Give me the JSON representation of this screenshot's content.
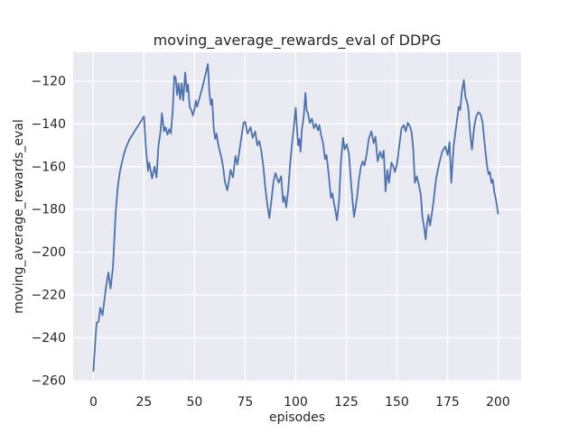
{
  "figure": {
    "title": "moving_average_rewards_eval of DDPG"
  },
  "chart_data": {
    "type": "line",
    "title": "moving_average_rewards_eval of DDPG",
    "xlabel": "episodes",
    "ylabel": "moving_average_rewards_eval",
    "x_ticks": [
      0,
      25,
      50,
      75,
      100,
      125,
      150,
      175,
      200
    ],
    "y_ticks": [
      -260,
      -240,
      -220,
      -200,
      -180,
      -160,
      -140,
      -120
    ],
    "xlim": [
      -10,
      211.4
    ],
    "ylim": [
      -260.5,
      -106.5
    ],
    "grid": true,
    "legend": false,
    "colors": {
      "line": "#4c72b0",
      "axes_bg": "#eaeaf2",
      "grid": "#ffffff",
      "figure_bg": "#ffffff",
      "text": "#262626"
    },
    "series": [
      {
        "name": "moving_average_rewards_eval",
        "x": [
          0,
          1,
          1.6,
          2.6,
          3.4,
          4.5,
          5.5,
          6.4,
          7.4,
          8.5,
          9.7,
          11,
          12,
          13,
          14,
          15,
          16,
          17,
          18,
          19,
          20,
          21,
          22,
          23,
          24,
          25,
          26,
          27,
          27.6,
          29,
          30.2,
          31.2,
          32.2,
          33.1,
          33.9,
          34.9,
          35.7,
          36.6,
          37.5,
          38.3,
          39.2,
          40,
          40.7,
          41.4,
          42.1,
          42.9,
          43.6,
          44.4,
          45.4,
          46.2,
          46.8,
          47.6,
          48.4,
          49.2,
          50,
          50.6,
          51.3,
          52,
          53,
          54,
          55,
          56,
          56.6,
          57.3,
          58,
          58.7,
          59.5,
          60.2,
          60.9,
          61.6,
          62.4,
          63.2,
          64.1,
          65,
          66.2,
          67,
          67.8,
          69,
          70.2,
          71.2,
          72.6,
          74.2,
          75,
          76.2,
          77.7,
          78.7,
          80,
          81,
          82,
          83,
          84,
          85,
          86,
          87,
          88,
          89,
          90,
          91,
          91.6,
          92.8,
          93.8,
          94.5,
          95.3,
          96.3,
          97.3,
          98.2,
          99,
          100,
          100.6,
          101.2,
          101.8,
          102.4,
          103,
          103.5,
          104,
          104.8,
          105.4,
          106,
          107,
          108,
          109,
          110,
          111,
          111.7,
          112.5,
          113.5,
          114.5,
          115.2,
          116.2,
          117.4,
          118.1,
          119,
          119.7,
          120.4,
          121.4,
          122.4,
          123.4,
          124.2,
          125.2,
          126.3,
          127.4,
          128.2,
          128.8,
          129.6,
          130.3,
          131.2,
          132.2,
          133.1,
          134,
          135.1,
          136.1,
          137.4,
          138.5,
          139.4,
          140.5,
          141.7,
          142.7,
          143.5,
          144.4,
          145.3,
          146.1,
          147.3,
          148.3,
          149.1,
          150.1,
          151.4,
          152.3,
          153.4,
          154.4,
          155.4,
          156.4,
          157.3,
          158.1,
          158.9,
          159.8,
          160.8,
          161.8,
          162.6,
          163.4,
          164.2,
          164.9,
          165.6,
          166.4,
          167.3,
          168,
          169.4,
          170.9,
          172.4,
          173.9,
          175.1,
          176,
          176.9,
          178.1,
          179,
          179.9,
          180.6,
          181.3,
          182.1,
          183.1,
          183.9,
          184.6,
          185.3,
          186.2,
          187.1,
          188.2,
          189.2,
          190.3,
          191.4,
          192.4,
          193.4,
          194.5,
          195.3,
          196,
          196.7,
          197.4,
          198.2,
          199.1,
          200
        ],
        "y": [
          -255.5,
          -241,
          -233,
          -232.5,
          -226,
          -229.5,
          -222,
          -215.5,
          -209.5,
          -217,
          -207,
          -182,
          -170,
          -163,
          -158.5,
          -154.5,
          -151.5,
          -149,
          -147,
          -145.5,
          -144,
          -142.5,
          -141,
          -139.5,
          -138,
          -136.5,
          -152,
          -162,
          -158,
          -165.5,
          -160,
          -165,
          -150,
          -144,
          -135,
          -143.5,
          -141.5,
          -145,
          -142.5,
          -144.5,
          -134,
          -117.5,
          -118.5,
          -126.5,
          -121,
          -128.5,
          -121,
          -129,
          -116,
          -125,
          -121.5,
          -132,
          -133.5,
          -136,
          -133,
          -129,
          -132,
          -129.5,
          -126,
          -122.5,
          -118.5,
          -114.5,
          -112,
          -125,
          -131,
          -128.5,
          -142,
          -147,
          -144.5,
          -149,
          -152.5,
          -155.5,
          -160,
          -167,
          -171,
          -166.5,
          -161.5,
          -165,
          -155,
          -159,
          -150,
          -139.5,
          -139,
          -144.5,
          -141.5,
          -146.5,
          -143.5,
          -150,
          -148,
          -152.5,
          -160,
          -170,
          -178,
          -184,
          -176,
          -167,
          -163,
          -166,
          -167.5,
          -164.5,
          -176.5,
          -174,
          -179,
          -171,
          -158,
          -149,
          -142,
          -132.5,
          -142,
          -150,
          -147,
          -153,
          -143,
          -139.5,
          -136,
          -125.5,
          -133.5,
          -135,
          -139.5,
          -137.5,
          -142,
          -140,
          -143,
          -140.5,
          -145,
          -149,
          -156.5,
          -154.5,
          -162.5,
          -174.5,
          -172.5,
          -177.5,
          -181,
          -185,
          -176,
          -157,
          -146.5,
          -152,
          -149.5,
          -154,
          -168,
          -177,
          -183.5,
          -179,
          -174.5,
          -166.5,
          -160,
          -157.5,
          -159.5,
          -154,
          -147,
          -143.5,
          -149,
          -146,
          -157.5,
          -153,
          -156,
          -152.5,
          -171.5,
          -161.5,
          -167.5,
          -158,
          -160,
          -162.5,
          -158.5,
          -148.5,
          -142,
          -140.5,
          -143.5,
          -139.5,
          -141,
          -144,
          -152,
          -167.5,
          -164.5,
          -168,
          -173,
          -183.5,
          -188,
          -194,
          -187,
          -182.5,
          -187.5,
          -182,
          -177,
          -165.5,
          -158.5,
          -153,
          -150.5,
          -154.5,
          -148.5,
          -167.5,
          -150,
          -143.5,
          -137,
          -132,
          -133.5,
          -125,
          -119.5,
          -127.5,
          -129.5,
          -132.5,
          -144,
          -152,
          -141.5,
          -136.5,
          -134.5,
          -135.5,
          -139.5,
          -149.5,
          -159,
          -163.5,
          -162.5,
          -167.5,
          -166,
          -172,
          -176,
          -182
        ]
      }
    ]
  }
}
